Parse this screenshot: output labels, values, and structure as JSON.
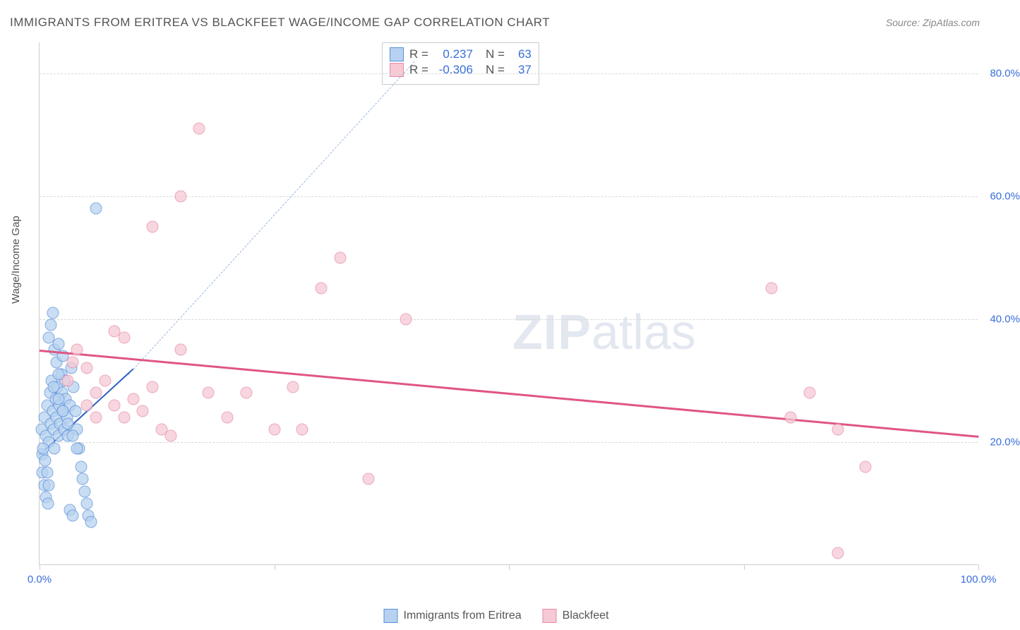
{
  "title": "IMMIGRANTS FROM ERITREA VS BLACKFEET WAGE/INCOME GAP CORRELATION CHART",
  "source": "Source: ZipAtlas.com",
  "y_label": "Wage/Income Gap",
  "watermark": {
    "bold": "ZIP",
    "rest": "atlas"
  },
  "chart": {
    "type": "scatter",
    "xlim": [
      0,
      100
    ],
    "ylim": [
      0,
      85
    ],
    "x_ticks": [
      0,
      25,
      50,
      75,
      100
    ],
    "x_tick_labels": [
      "0.0%",
      "",
      "",
      "",
      "100.0%"
    ],
    "y_ticks": [
      20,
      40,
      60,
      80
    ],
    "y_tick_labels": [
      "20.0%",
      "40.0%",
      "60.0%",
      "80.0%"
    ],
    "grid_color": "#d8d8d8",
    "background_color": "#ffffff",
    "axis_color": "#cccccc",
    "tick_label_color": "#3a6fd8",
    "marker_radius": 8.5,
    "marker_opacity": 0.75
  },
  "series": [
    {
      "name": "Immigrants from Eritrea",
      "fill": "#b7d2f0",
      "stroke": "#5a8fd8",
      "trend": {
        "x1": 0,
        "y1": 18,
        "x2": 10,
        "y2": 32,
        "color": "#2a5fc0",
        "width": 2
      },
      "dashed_guide": {
        "x1": 9.5,
        "y1": 31,
        "x2": 40,
        "y2": 82,
        "color": "#9ab5e0"
      },
      "R": "0.237",
      "N": "63",
      "points": [
        [
          0.2,
          22
        ],
        [
          0.3,
          18
        ],
        [
          0.5,
          24
        ],
        [
          0.7,
          21
        ],
        [
          0.8,
          26
        ],
        [
          1.0,
          20
        ],
        [
          1.1,
          28
        ],
        [
          1.2,
          23
        ],
        [
          1.3,
          30
        ],
        [
          1.4,
          25
        ],
        [
          1.5,
          22
        ],
        [
          1.6,
          19
        ],
        [
          1.7,
          27
        ],
        [
          1.8,
          24
        ],
        [
          1.9,
          29
        ],
        [
          2.0,
          21
        ],
        [
          2.1,
          26
        ],
        [
          2.2,
          23
        ],
        [
          2.3,
          31
        ],
        [
          2.4,
          28
        ],
        [
          2.5,
          25
        ],
        [
          2.6,
          22
        ],
        [
          2.7,
          30
        ],
        [
          2.8,
          27
        ],
        [
          2.9,
          24
        ],
        [
          3.0,
          21
        ],
        [
          3.2,
          26
        ],
        [
          3.4,
          32
        ],
        [
          3.6,
          29
        ],
        [
          3.8,
          25
        ],
        [
          4.0,
          22
        ],
        [
          4.2,
          19
        ],
        [
          4.4,
          16
        ],
        [
          4.6,
          14
        ],
        [
          4.8,
          12
        ],
        [
          5.0,
          10
        ],
        [
          5.2,
          8
        ],
        [
          5.5,
          7
        ],
        [
          6.0,
          58
        ],
        [
          1.0,
          37
        ],
        [
          1.2,
          39
        ],
        [
          1.4,
          41
        ],
        [
          1.6,
          35
        ],
        [
          1.8,
          33
        ],
        [
          2.0,
          31
        ],
        [
          0.3,
          15
        ],
        [
          0.5,
          13
        ],
        [
          0.7,
          11
        ],
        [
          0.9,
          10
        ],
        [
          3.2,
          9
        ],
        [
          3.5,
          8
        ],
        [
          2.0,
          36
        ],
        [
          2.5,
          34
        ],
        [
          0.4,
          19
        ],
        [
          0.6,
          17
        ],
        [
          0.8,
          15
        ],
        [
          1.0,
          13
        ],
        [
          1.5,
          29
        ],
        [
          2.0,
          27
        ],
        [
          2.5,
          25
        ],
        [
          3.0,
          23
        ],
        [
          3.5,
          21
        ],
        [
          4.0,
          19
        ]
      ]
    },
    {
      "name": "Blackfeet",
      "fill": "#f6c9d5",
      "stroke": "#e68aa5",
      "trend": {
        "x1": 0,
        "y1": 35,
        "x2": 100,
        "y2": 21,
        "color": "#e05585",
        "width": 2.5
      },
      "R": "-0.306",
      "N": "37",
      "points": [
        [
          3,
          30
        ],
        [
          3.5,
          33
        ],
        [
          4,
          35
        ],
        [
          5,
          32
        ],
        [
          6,
          28
        ],
        [
          7,
          30
        ],
        [
          8,
          38
        ],
        [
          9,
          37
        ],
        [
          10,
          27
        ],
        [
          11,
          25
        ],
        [
          12,
          29
        ],
        [
          13,
          22
        ],
        [
          14,
          21
        ],
        [
          15,
          35
        ],
        [
          17,
          71
        ],
        [
          15,
          60
        ],
        [
          12,
          55
        ],
        [
          18,
          28
        ],
        [
          20,
          24
        ],
        [
          22,
          28
        ],
        [
          25,
          22
        ],
        [
          27,
          29
        ],
        [
          28,
          22
        ],
        [
          30,
          45
        ],
        [
          32,
          50
        ],
        [
          35,
          14
        ],
        [
          39,
          40
        ],
        [
          78,
          45
        ],
        [
          80,
          24
        ],
        [
          82,
          28
        ],
        [
          85,
          22
        ],
        [
          88,
          16
        ],
        [
          85,
          2
        ],
        [
          5,
          26
        ],
        [
          6,
          24
        ],
        [
          8,
          26
        ],
        [
          9,
          24
        ]
      ]
    }
  ],
  "stats_box": {
    "R_label": "R =",
    "N_label": "N ="
  }
}
